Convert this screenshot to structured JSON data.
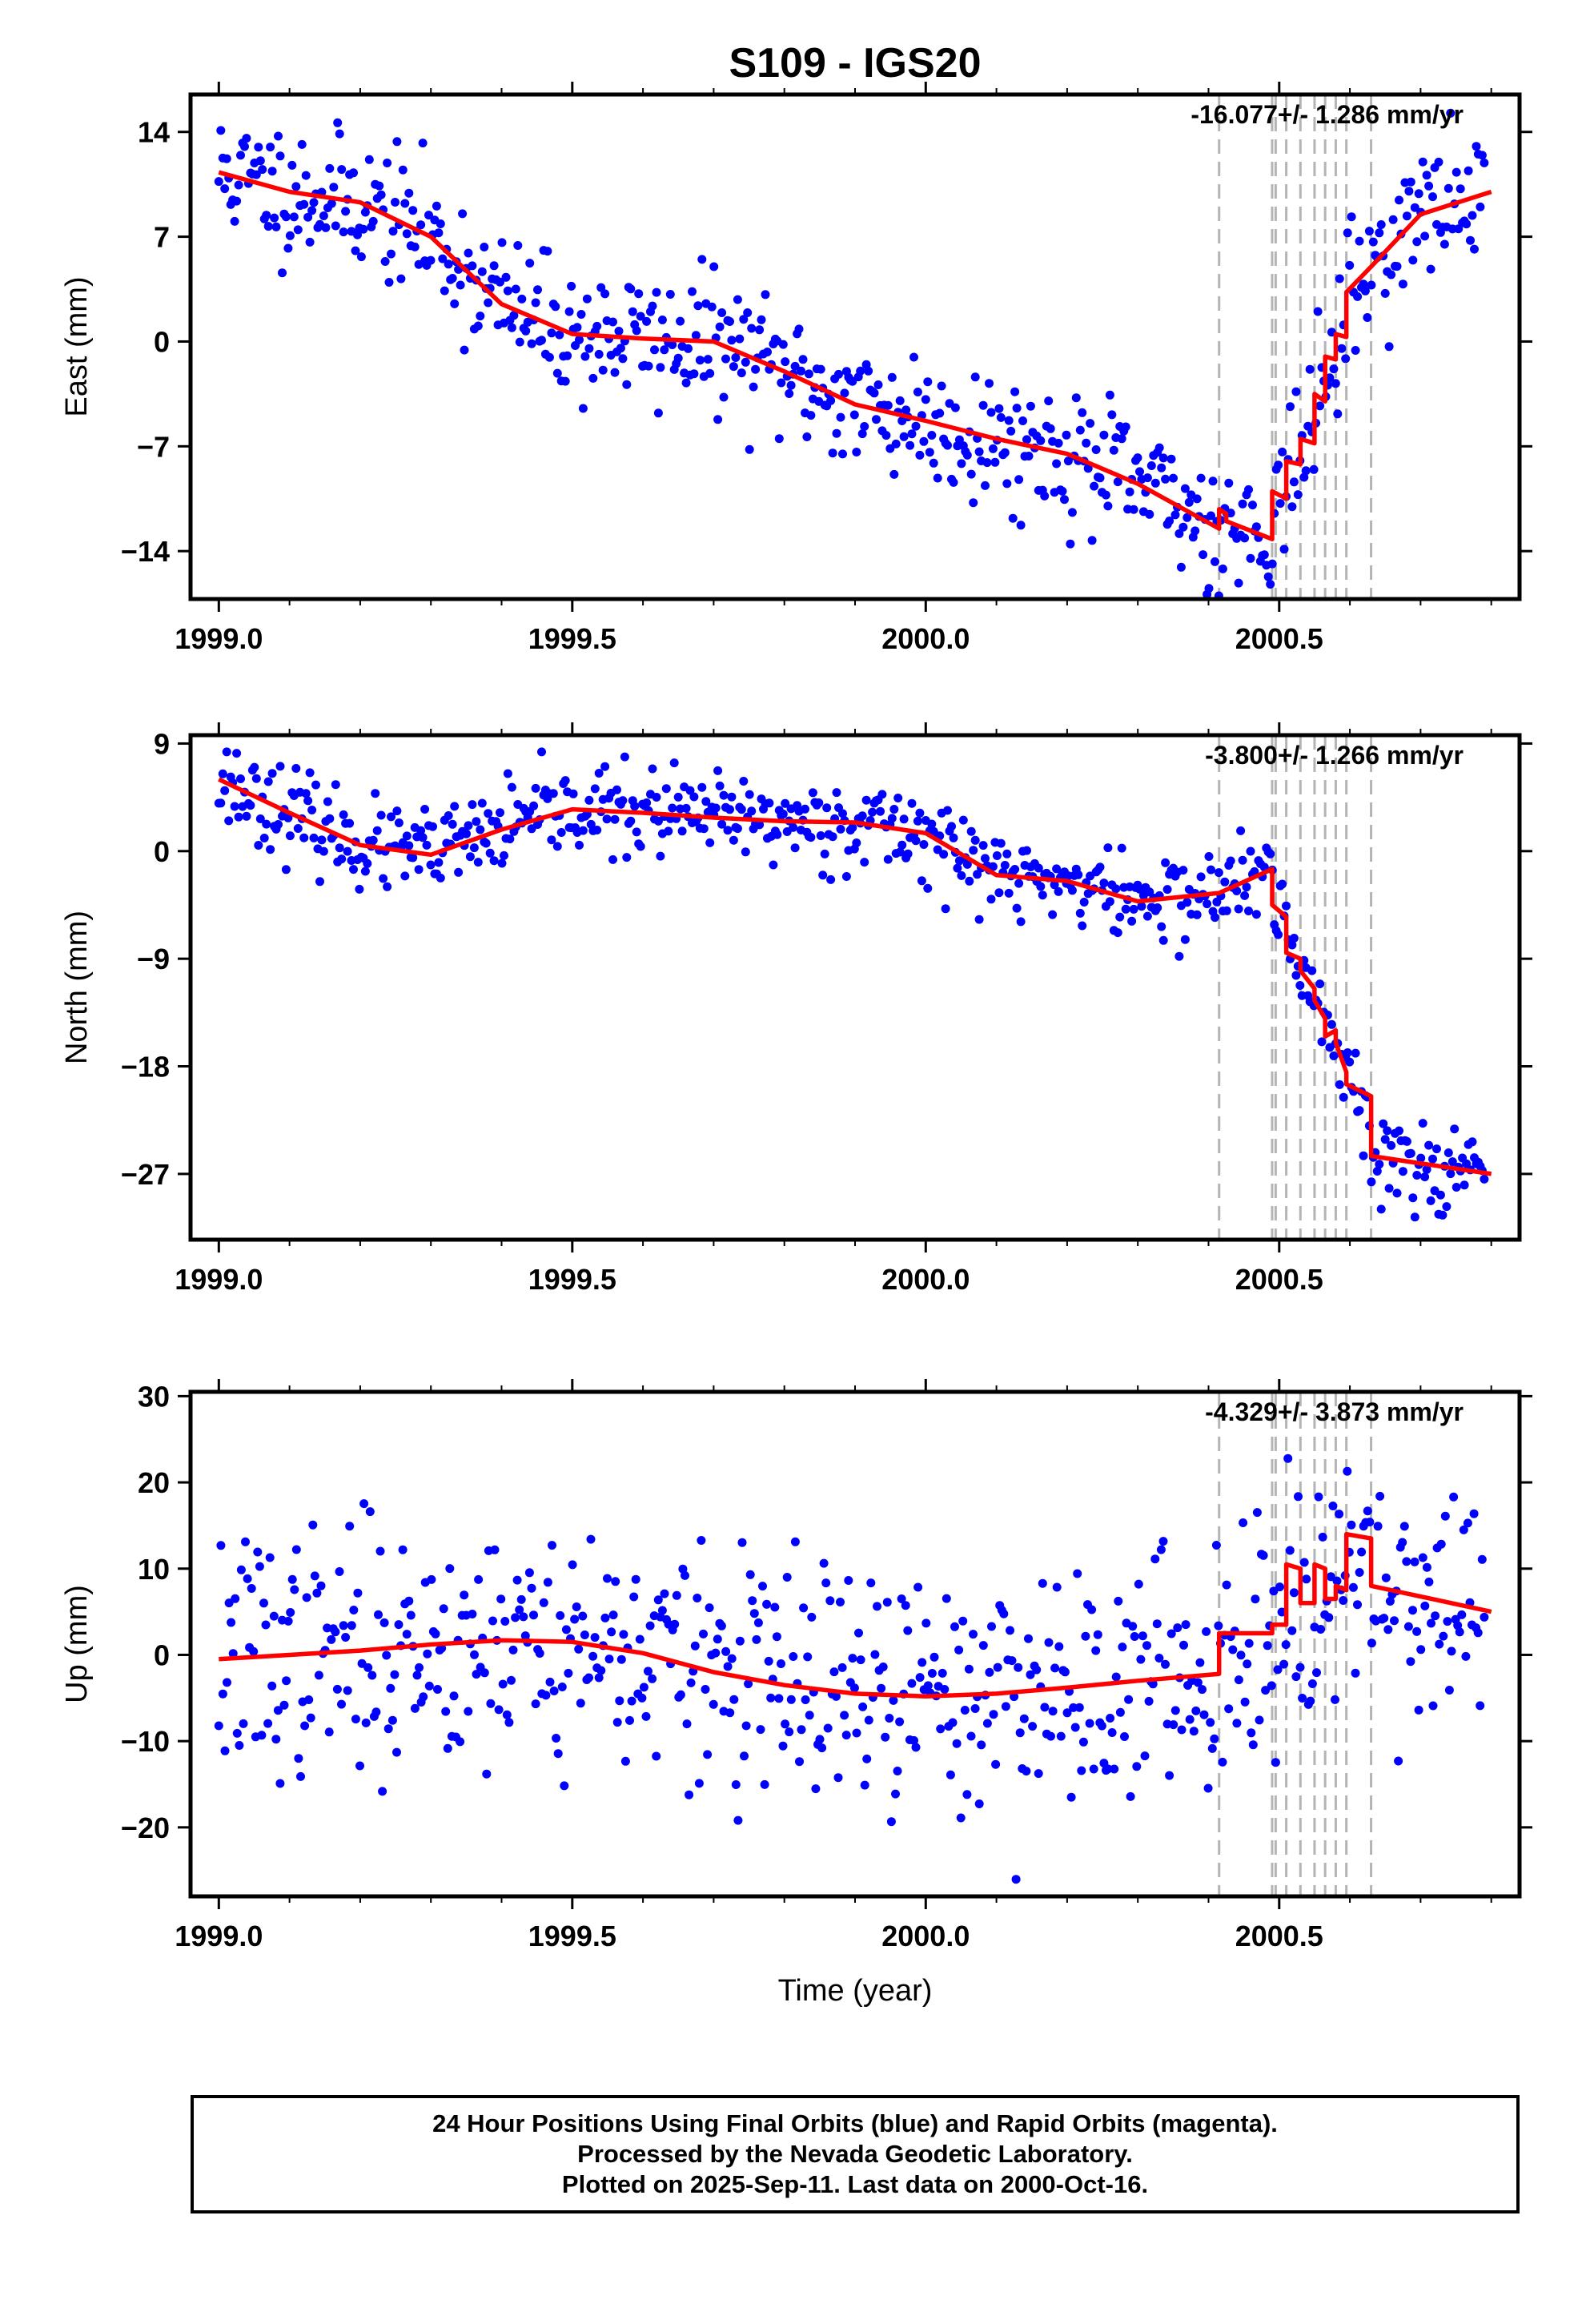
{
  "title": "S109 - IGS20",
  "chart_data": [
    {
      "type": "scatter",
      "ylabel": "East (mm)",
      "rate_text": "-16.077+/- 1.286 mm/yr",
      "xlim": [
        1998.96,
        2000.84
      ],
      "ylim": [
        -17.2,
        16.5
      ],
      "xticks": [
        1999.0,
        1999.5,
        2000.0,
        2000.5
      ],
      "xtick_labels": [
        "1999.0",
        "1999.5",
        "2000.0",
        "2000.5"
      ],
      "yticks": [
        14,
        7,
        0,
        -7,
        -14
      ],
      "ytick_labels": [
        "14",
        "7",
        "0",
        "−7",
        "−14"
      ],
      "trend": {
        "x": [
          1999.0,
          1999.1,
          1999.2,
          1999.3,
          1999.4,
          1999.5,
          1999.6,
          1999.7,
          1999.8,
          1999.9,
          2000.0,
          2000.1,
          2000.2,
          2000.3,
          2000.415,
          2000.415,
          2000.425,
          2000.425,
          2000.49,
          2000.49,
          2000.51,
          2000.51,
          2000.53,
          2000.53,
          2000.55,
          2000.55,
          2000.565,
          2000.565,
          2000.58,
          2000.58,
          2000.595,
          2000.595,
          2000.63,
          2000.7,
          2000.8
        ],
        "y": [
          11.3,
          10.0,
          9.3,
          7.0,
          2.5,
          0.5,
          0.2,
          0.0,
          -2.0,
          -4.2,
          -5.3,
          -6.5,
          -7.5,
          -9.5,
          -12.5,
          -11.2,
          -11.5,
          -12.0,
          -13.2,
          -10.0,
          -10.5,
          -8.0,
          -8.2,
          -6.5,
          -6.8,
          -3.5,
          -4.0,
          -1.0,
          -1.2,
          0.5,
          0.3,
          3.3,
          5.0,
          8.5,
          10.0
        ]
      },
      "scatter": {
        "x0": 1999.0,
        "x1": 2000.79,
        "n": 640,
        "spread": 2.2,
        "seed": 11
      }
    },
    {
      "type": "scatter",
      "ylabel": "North (mm)",
      "rate_text": "-3.800+/- 1.266 mm/yr",
      "xlim": [
        1998.96,
        2000.84
      ],
      "ylim": [
        -32.5,
        9.7
      ],
      "xticks": [
        1999.0,
        1999.5,
        2000.0,
        2000.5
      ],
      "xtick_labels": [
        "1999.0",
        "1999.5",
        "2000.0",
        "2000.5"
      ],
      "yticks": [
        9,
        0,
        -9,
        -18,
        -27
      ],
      "ytick_labels": [
        "9",
        "0",
        "−9",
        "−18",
        "−27"
      ],
      "trend": {
        "x": [
          1999.0,
          1999.1,
          1999.2,
          1999.3,
          1999.4,
          1999.5,
          1999.6,
          1999.7,
          1999.8,
          1999.9,
          2000.0,
          2000.1,
          2000.2,
          2000.3,
          2000.415,
          2000.49,
          2000.49,
          2000.51,
          2000.51,
          2000.53,
          2000.53,
          2000.55,
          2000.55,
          2000.565,
          2000.565,
          2000.58,
          2000.58,
          2000.595,
          2000.595,
          2000.63,
          2000.63,
          2000.8
        ],
        "y": [
          6.0,
          3.2,
          0.5,
          -0.3,
          1.8,
          3.5,
          3.2,
          2.8,
          2.5,
          2.4,
          1.5,
          -2.0,
          -2.5,
          -4.2,
          -3.5,
          -1.5,
          -4.5,
          -5.5,
          -8.5,
          -9.0,
          -10.0,
          -11.5,
          -12.5,
          -14.0,
          -15.5,
          -15.0,
          -16.0,
          -18.5,
          -19.5,
          -20.5,
          -25.5,
          -27.0
        ]
      },
      "scatter": {
        "x0": 1999.0,
        "x1": 2000.79,
        "n": 640,
        "spread": 1.8,
        "seed": 23
      }
    },
    {
      "type": "scatter",
      "ylabel": "Up (mm)",
      "rate_text": "-4.329+/- 3.873 mm/yr",
      "xlim": [
        1998.96,
        2000.84
      ],
      "ylim": [
        -28,
        30.5
      ],
      "xticks": [
        1999.0,
        1999.5,
        2000.0,
        2000.5
      ],
      "xtick_labels": [
        "1999.0",
        "1999.5",
        "2000.0",
        "2000.5"
      ],
      "yticks": [
        30,
        20,
        10,
        0,
        -10,
        -20
      ],
      "ytick_labels": [
        "30",
        "20",
        "10",
        "0",
        "−10",
        "−20"
      ],
      "xlabel": "Time (year)",
      "trend": {
        "x": [
          1999.0,
          1999.1,
          1999.2,
          1999.3,
          1999.4,
          1999.5,
          1999.6,
          1999.7,
          1999.8,
          1999.9,
          2000.0,
          2000.1,
          2000.2,
          2000.3,
          2000.415,
          2000.415,
          2000.49,
          2000.49,
          2000.51,
          2000.51,
          2000.53,
          2000.53,
          2000.55,
          2000.55,
          2000.565,
          2000.565,
          2000.58,
          2000.58,
          2000.595,
          2000.595,
          2000.63,
          2000.63,
          2000.8
        ],
        "y": [
          -0.5,
          0.0,
          0.5,
          1.2,
          1.7,
          1.5,
          0.2,
          -2.0,
          -3.5,
          -4.5,
          -4.8,
          -4.5,
          -3.8,
          -3.0,
          -2.2,
          2.5,
          2.5,
          3.5,
          3.5,
          10.5,
          10.0,
          6.0,
          6.0,
          10.5,
          10.0,
          6.5,
          6.5,
          8.0,
          7.5,
          14.0,
          13.5,
          8.0,
          5.0
        ]
      },
      "scatter": {
        "x0": 1999.0,
        "x1": 2000.79,
        "n": 620,
        "spread": 7.0,
        "seed": 37
      }
    }
  ],
  "event_lines": [
    2000.415,
    2000.49,
    2000.495,
    2000.51,
    2000.53,
    2000.55,
    2000.565,
    2000.58,
    2000.595,
    2000.63
  ],
  "colors": {
    "points": "#0000ff",
    "trend": "#ff0000",
    "event_lines": "#b4b4b4"
  },
  "caption": [
    "24 Hour Positions Using Final Orbits (blue) and Rapid Orbits (magenta).",
    "Processed by the Nevada Geodetic Laboratory.",
    "Plotted on 2025-Sep-11. Last data on 2000-Oct-16."
  ]
}
